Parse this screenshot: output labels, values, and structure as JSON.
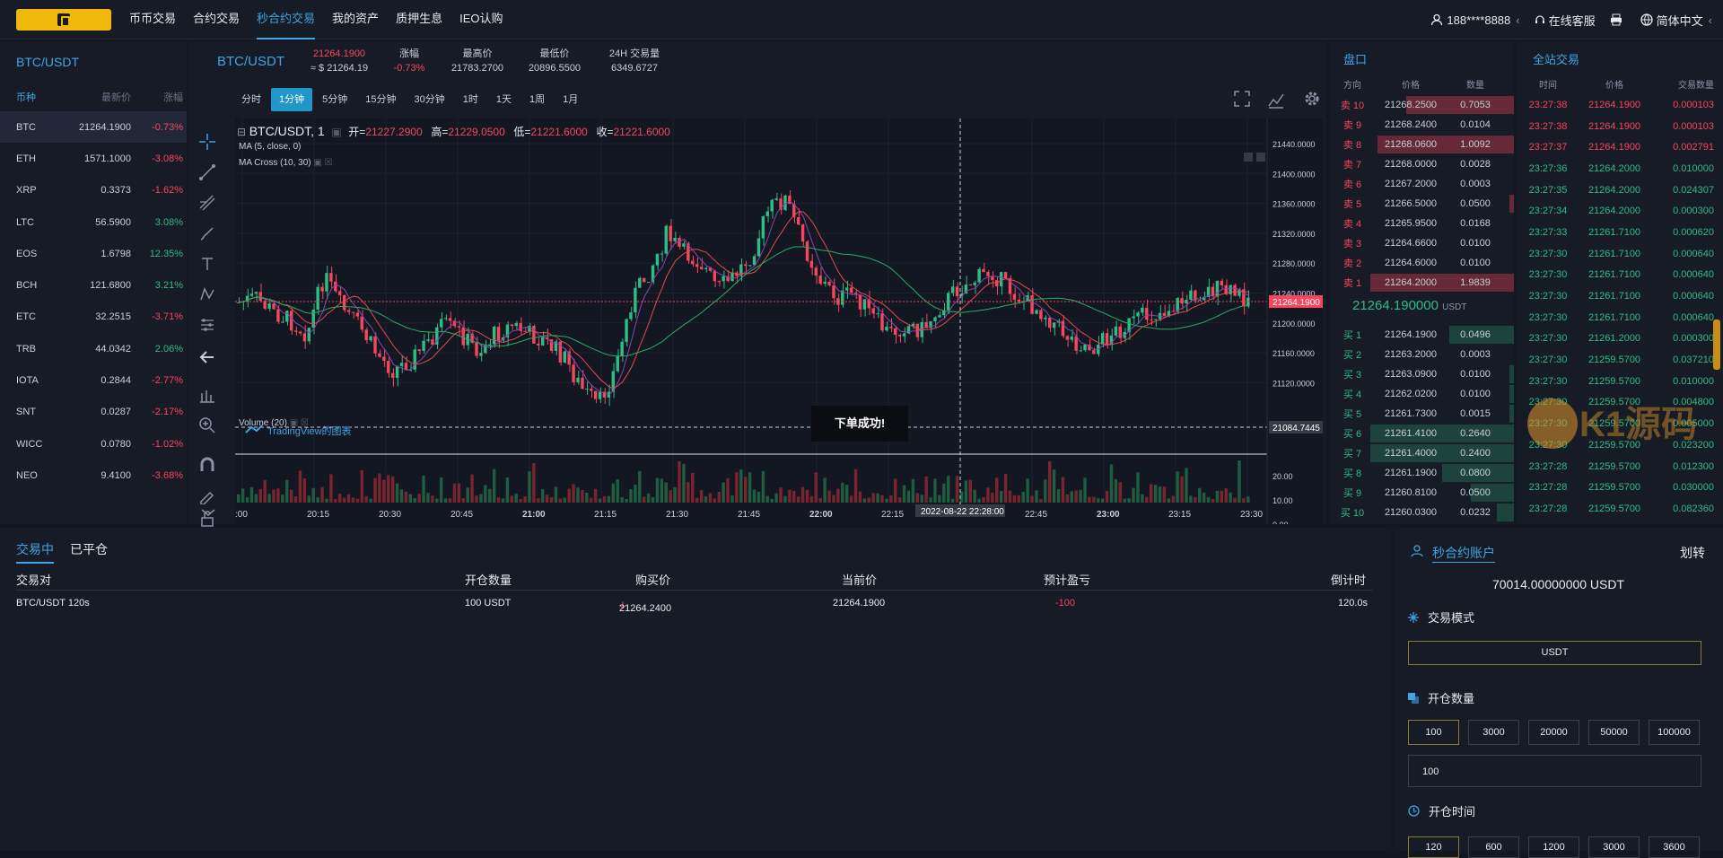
{
  "nav": {
    "items": [
      "币币交易",
      "合约交易",
      "秒合约交易",
      "我的资产",
      "质押生息",
      "IEO认购"
    ],
    "active_index": 2,
    "user": "188****8888",
    "service": "在线客服",
    "language": "简体中文"
  },
  "market": {
    "title": "BTC/USDT",
    "headers": [
      "币种",
      "最新价",
      "涨幅"
    ],
    "rows": [
      {
        "coin": "BTC",
        "price": "21264.1900",
        "change": "-0.73%",
        "dir": "dn"
      },
      {
        "coin": "ETH",
        "price": "1571.1000",
        "change": "-3.08%",
        "dir": "dn"
      },
      {
        "coin": "XRP",
        "price": "0.3373",
        "change": "-1.62%",
        "dir": "dn"
      },
      {
        "coin": "LTC",
        "price": "56.5900",
        "change": "3.08%",
        "dir": "up"
      },
      {
        "coin": "EOS",
        "price": "1.6798",
        "change": "12.35%",
        "dir": "up"
      },
      {
        "coin": "BCH",
        "price": "121.6800",
        "change": "3.21%",
        "dir": "up"
      },
      {
        "coin": "ETC",
        "price": "32.2515",
        "change": "-3.71%",
        "dir": "dn"
      },
      {
        "coin": "TRB",
        "price": "44.0342",
        "change": "2.06%",
        "dir": "up"
      },
      {
        "coin": "IOTA",
        "price": "0.2844",
        "change": "-2.77%",
        "dir": "dn"
      },
      {
        "coin": "SNT",
        "price": "0.0287",
        "change": "-2.17%",
        "dir": "dn"
      },
      {
        "coin": "WICC",
        "price": "0.0780",
        "change": "-1.02%",
        "dir": "dn"
      },
      {
        "coin": "NEO",
        "price": "9.4100",
        "change": "-3.68%",
        "dir": "dn"
      }
    ]
  },
  "ticker": {
    "symbol": "BTC/USDT",
    "price": "21264.1900",
    "price_usd": "≈ $ 21264.19",
    "change_label": "涨幅",
    "change": "-0.73%",
    "high_label": "最高价",
    "high": "21783.2700",
    "low_label": "最低价",
    "low": "20896.5500",
    "vol_label": "24H 交易量",
    "vol": "6349.6727"
  },
  "chart": {
    "timeframes": [
      "分时",
      "1分钟",
      "5分钟",
      "15分钟",
      "30分钟",
      "1时",
      "1天",
      "1周",
      "1月"
    ],
    "active_tf": 1,
    "legend_symbol": "BTC/USDT, 1",
    "ohlc": {
      "open_label": "开=",
      "open": "21227.2900",
      "high_label": "高=",
      "high": "21229.0500",
      "low_label": "低=",
      "low": "21221.6000",
      "close_label": "收=",
      "close": "21221.6000"
    },
    "ma1": "MA (5, close, 0)",
    "ma2": "MA Cross (10, 30)",
    "volume_label": "Volume (20)",
    "y_ticks": [
      "21440.0000",
      "21400.0000",
      "21360.0000",
      "21320.0000",
      "21280.0000",
      "21240.0000",
      "21200.0000",
      "21160.0000",
      "21120.0000"
    ],
    "last_price_tag": "21264.1900",
    "crosshair_tag": "21084.7445",
    "vol_ticks": [
      "20.00",
      "10.00",
      "0.00"
    ],
    "x_ticks": [
      ":00",
      "20:15",
      "20:30",
      "20:45",
      "21:00",
      "21:15",
      "21:30",
      "21:45",
      "22:00",
      "22:15",
      "22:45",
      "23:00",
      "23:15",
      "23:30"
    ],
    "crosshair_time": "2022-08-22 22:28:00",
    "watermark": "TradingView的图表",
    "toast": "下单成功!"
  },
  "book": {
    "title": "盘口",
    "headers": [
      "方向",
      "价格",
      "数量"
    ],
    "asks": [
      {
        "side": "卖 10",
        "price": "21268.2500",
        "qty": "0.7053",
        "depth": 0.75
      },
      {
        "side": "卖 9",
        "price": "21268.2400",
        "qty": "0.0104",
        "depth": 0
      },
      {
        "side": "卖 8",
        "price": "21268.0600",
        "qty": "1.0092",
        "depth": 0.95
      },
      {
        "side": "卖 7",
        "price": "21268.0000",
        "qty": "0.0028",
        "depth": 0
      },
      {
        "side": "卖 6",
        "price": "21267.2000",
        "qty": "0.0003",
        "depth": 0
      },
      {
        "side": "卖 5",
        "price": "21266.5000",
        "qty": "0.0500",
        "depth": 0.03
      },
      {
        "side": "卖 4",
        "price": "21265.9500",
        "qty": "0.0168",
        "depth": 0
      },
      {
        "side": "卖 3",
        "price": "21264.6600",
        "qty": "0.0100",
        "depth": 0
      },
      {
        "side": "卖 2",
        "price": "21264.6000",
        "qty": "0.0100",
        "depth": 0
      },
      {
        "side": "卖 1",
        "price": "21264.2000",
        "qty": "1.9839",
        "depth": 1.0
      }
    ],
    "last_price": "21264.190000",
    "last_unit": "USDT",
    "bids": [
      {
        "side": "买 1",
        "price": "21264.1900",
        "qty": "0.0496",
        "depth": 0.45
      },
      {
        "side": "买 2",
        "price": "21263.2000",
        "qty": "0.0003",
        "depth": 0
      },
      {
        "side": "买 3",
        "price": "21263.0900",
        "qty": "0.0100",
        "depth": 0.03
      },
      {
        "side": "买 4",
        "price": "21262.0200",
        "qty": "0.0100",
        "depth": 0.03
      },
      {
        "side": "买 5",
        "price": "21261.7300",
        "qty": "0.0015",
        "depth": 0.03
      },
      {
        "side": "买 6",
        "price": "21261.4100",
        "qty": "0.2640",
        "depth": 1.0
      },
      {
        "side": "买 7",
        "price": "21261.4000",
        "qty": "0.2400",
        "depth": 1.0
      },
      {
        "side": "买 8",
        "price": "21261.1900",
        "qty": "0.0800",
        "depth": 0.5
      },
      {
        "side": "买 9",
        "price": "21260.8100",
        "qty": "0.0500",
        "depth": 0.3
      },
      {
        "side": "买 10",
        "price": "21260.0300",
        "qty": "0.0232",
        "depth": 0.12
      }
    ]
  },
  "trades": {
    "title": "全站交易",
    "headers": [
      "时间",
      "价格",
      "交易数量"
    ],
    "rows": [
      {
        "time": "23:27:38",
        "price": "21264.1900",
        "qty": "0.000103",
        "dir": "dn"
      },
      {
        "time": "23:27:38",
        "price": "21264.1900",
        "qty": "0.000103",
        "dir": "dn"
      },
      {
        "time": "23:27:37",
        "price": "21264.1900",
        "qty": "0.002791",
        "dir": "dn"
      },
      {
        "time": "23:27:36",
        "price": "21264.2000",
        "qty": "0.010000",
        "dir": "up"
      },
      {
        "time": "23:27:35",
        "price": "21264.2000",
        "qty": "0.024307",
        "dir": "up"
      },
      {
        "time": "23:27:34",
        "price": "21264.2000",
        "qty": "0.000300",
        "dir": "up"
      },
      {
        "time": "23:27:33",
        "price": "21261.7100",
        "qty": "0.000620",
        "dir": "up"
      },
      {
        "time": "23:27:30",
        "price": "21261.7100",
        "qty": "0.000640",
        "dir": "up"
      },
      {
        "time": "23:27:30",
        "price": "21261.7100",
        "qty": "0.000640",
        "dir": "up"
      },
      {
        "time": "23:27:30",
        "price": "21261.7100",
        "qty": "0.000640",
        "dir": "up"
      },
      {
        "time": "23:27:30",
        "price": "21261.7100",
        "qty": "0.000640",
        "dir": "up"
      },
      {
        "time": "23:27:30",
        "price": "21261.2000",
        "qty": "0.000300",
        "dir": "up"
      },
      {
        "time": "23:27:30",
        "price": "21259.5700",
        "qty": "0.037210",
        "dir": "up"
      },
      {
        "time": "23:27:30",
        "price": "21259.5700",
        "qty": "0.010000",
        "dir": "up"
      },
      {
        "time": "23:27:30",
        "price": "21259.5700",
        "qty": "0.004800",
        "dir": "up"
      },
      {
        "time": "23:27:30",
        "price": "21259.5700",
        "qty": "0.005000",
        "dir": "up"
      },
      {
        "time": "23:27:30",
        "price": "21259.5700",
        "qty": "0.023200",
        "dir": "up"
      },
      {
        "time": "23:27:28",
        "price": "21259.5700",
        "qty": "0.012300",
        "dir": "up"
      },
      {
        "time": "23:27:28",
        "price": "21259.5700",
        "qty": "0.030000",
        "dir": "up"
      },
      {
        "time": "23:27:28",
        "price": "21259.5700",
        "qty": "0.082360",
        "dir": "up"
      }
    ],
    "watermark": "K1源码"
  },
  "orders": {
    "tabs": [
      "交易中",
      "已平仓"
    ],
    "headers": [
      "交易对",
      "开仓数量",
      "购买价",
      "当前价",
      "预计盈亏",
      "倒计时"
    ],
    "row": {
      "pair": "BTC/USDT 120s",
      "amount": "100 USDT",
      "buy_price": "21264.2400",
      "current": "21264.1900",
      "pnl": "-100",
      "countdown": "120.0s"
    }
  },
  "account": {
    "title": "秒合约账户",
    "transfer": "划转",
    "balance": "70014.00000000 USDT",
    "mode_label": "交易模式",
    "mode_value": "USDT",
    "qty_label": "开仓数量",
    "qty_options": [
      "100",
      "3000",
      "20000",
      "50000",
      "100000"
    ],
    "qty_selected": 0,
    "qty_input": "100",
    "time_label": "开仓时间",
    "time_options": [
      "120",
      "600",
      "1200",
      "3000",
      "3600"
    ]
  },
  "colors": {
    "accent": "#3ea5e6",
    "up": "#2ebd85",
    "down": "#f6465d",
    "brand": "#f0b90b"
  }
}
